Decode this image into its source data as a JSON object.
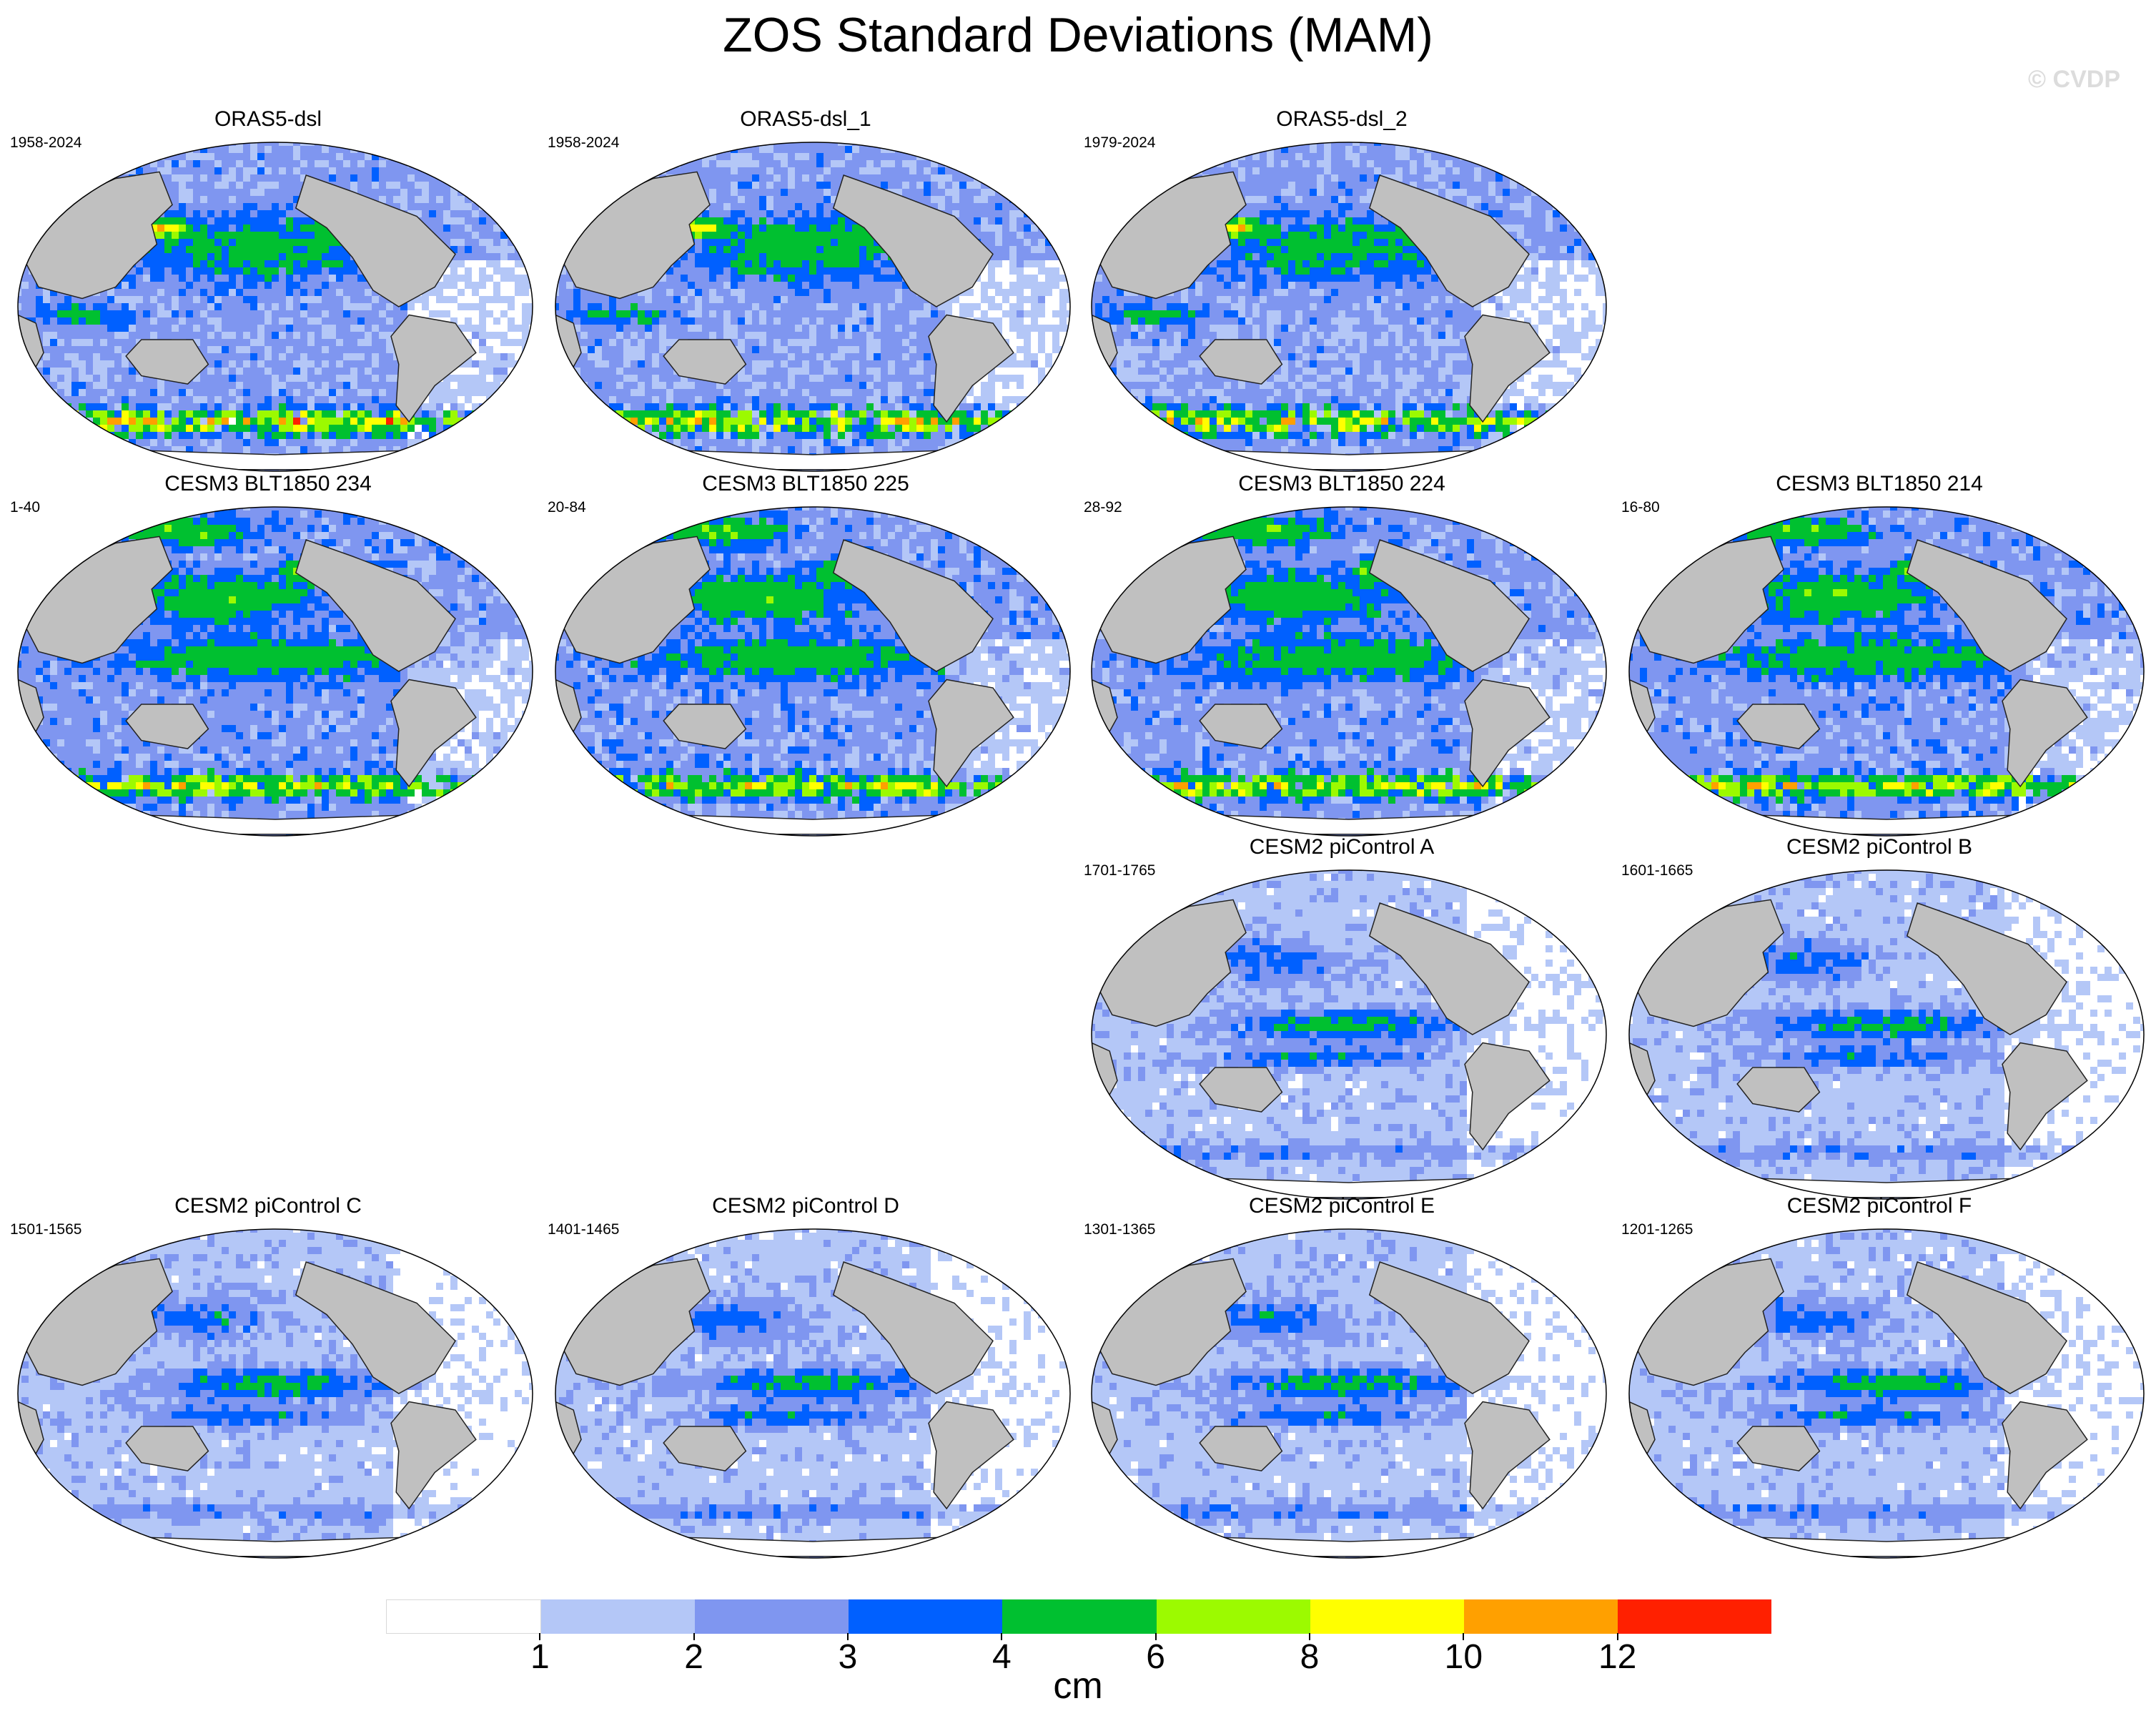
{
  "title": "ZOS Standard Deviations (MAM)",
  "watermark": "© CVDP",
  "units": "cm",
  "colorbar": {
    "levels": [
      "1",
      "2",
      "3",
      "4",
      "6",
      "8",
      "10",
      "12"
    ],
    "colors": [
      "#ffffff",
      "#b4c7f7",
      "#7f96f0",
      "#0060ff",
      "#00c030",
      "#9cfa00",
      "#ffff00",
      "#ffa000",
      "#ff2000"
    ]
  },
  "colors": {
    "land": "#c0c0c0",
    "coast": "#222222"
  },
  "panels": [
    {
      "title": "ORAS5-dsl",
      "years": "1958-2024",
      "pattern": "reanalysis"
    },
    {
      "title": "ORAS5-dsl_1",
      "years": "1958-2024",
      "pattern": "reanalysis"
    },
    {
      "title": "ORAS5-dsl_2",
      "years": "1979-2024",
      "pattern": "reanalysis"
    },
    {
      "title": "CESM3 BLT1850 234",
      "years": "1-40",
      "pattern": "cesm3"
    },
    {
      "title": "CESM3 BLT1850 225",
      "years": "20-84",
      "pattern": "cesm3"
    },
    {
      "title": "CESM3 BLT1850 224",
      "years": "28-92",
      "pattern": "cesm3"
    },
    {
      "title": "CESM3 BLT1850 214",
      "years": "16-80",
      "pattern": "cesm3"
    },
    {
      "title": "CESM2 piControl A",
      "years": "1701-1765",
      "pattern": "cesm2"
    },
    {
      "title": "CESM2 piControl B",
      "years": "1601-1665",
      "pattern": "cesm2"
    },
    {
      "title": "CESM2 piControl C",
      "years": "1501-1565",
      "pattern": "cesm2"
    },
    {
      "title": "CESM2 piControl D",
      "years": "1401-1465",
      "pattern": "cesm2"
    },
    {
      "title": "CESM2 piControl E",
      "years": "1301-1365",
      "pattern": "cesm2"
    },
    {
      "title": "CESM2 piControl F",
      "years": "1201-1265",
      "pattern": "cesm2"
    }
  ]
}
